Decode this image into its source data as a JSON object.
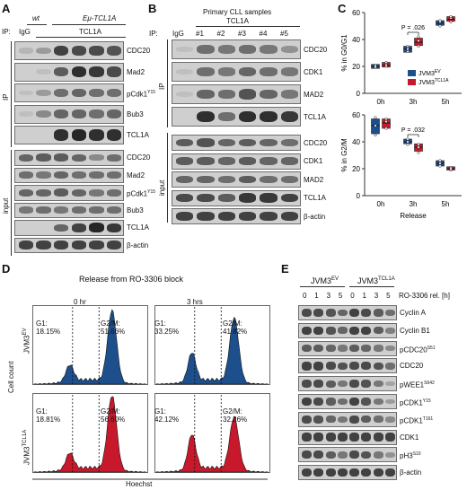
{
  "panels": {
    "a": "A",
    "b": "B",
    "c": "C",
    "d": "D",
    "e": "E"
  },
  "panelA": {
    "wt": "wt",
    "tg": "Eμ-TCL1A",
    "ip": "IP:",
    "igg": "IgG",
    "tcl1a": "TCL1A",
    "section_ip": "IP",
    "section_input": "input",
    "ip_rows": [
      {
        "label": "CDC20",
        "lanes": [
          0.1,
          0.25,
          0.75,
          0.7,
          0.7,
          0.65
        ]
      },
      {
        "label": "Mad2",
        "lanes": [
          0,
          0.05,
          0.6,
          0.85,
          0.8,
          0.7
        ]
      },
      {
        "label": "pCdk1Y15",
        "lanes": [
          0.05,
          0.25,
          0.5,
          0.55,
          0.5,
          0.5
        ]
      },
      {
        "label": "Bub3",
        "lanes": [
          0.05,
          0.35,
          0.55,
          0.55,
          0.5,
          0.55
        ]
      },
      {
        "label": "TCL1A",
        "lanes": [
          0,
          0,
          0.85,
          0.9,
          0.85,
          0.85
        ]
      }
    ],
    "input_rows": [
      {
        "label": "CDC20",
        "lanes": [
          0.55,
          0.6,
          0.6,
          0.55,
          0.35,
          0.5
        ]
      },
      {
        "label": "Mad2",
        "lanes": [
          0.5,
          0.45,
          0.55,
          0.5,
          0.5,
          0.5
        ]
      },
      {
        "label": "pCdk1Y15",
        "lanes": [
          0.55,
          0.55,
          0.6,
          0.55,
          0.45,
          0.5
        ]
      },
      {
        "label": "Bub3",
        "lanes": [
          0.45,
          0.5,
          0.45,
          0.5,
          0.5,
          0.5
        ]
      },
      {
        "label": "TCL1A",
        "lanes": [
          0,
          0,
          0.55,
          0.75,
          0.9,
          0.8
        ]
      },
      {
        "label": "β-actin",
        "lanes": [
          0.75,
          0.75,
          0.75,
          0.75,
          0.75,
          0.75
        ]
      }
    ]
  },
  "panelB": {
    "ip": "IP:",
    "igg": "IgG",
    "title1": "Primary CLL samples",
    "title2": "TCL1A",
    "samples": [
      "#1",
      "#2",
      "#3",
      "#4",
      "#5"
    ],
    "section_ip": "IP",
    "section_input": "input",
    "ip_rows": [
      {
        "label": "CDC20",
        "lanes": [
          0.05,
          0.5,
          0.45,
          0.5,
          0.45,
          0.3
        ]
      },
      {
        "label": "CDK1",
        "lanes": [
          0.05,
          0.5,
          0.45,
          0.55,
          0.5,
          0.45
        ]
      },
      {
        "label": "MAD2",
        "lanes": [
          0.05,
          0.55,
          0.5,
          0.65,
          0.55,
          0.45
        ]
      },
      {
        "label": "TCL1A",
        "lanes": [
          0,
          0.85,
          0.5,
          0.85,
          0.85,
          0.8
        ]
      }
    ],
    "input_rows": [
      {
        "label": "CDC20",
        "lanes": [
          0.6,
          0.65,
          0.55,
          0.6,
          0.55,
          0.5
        ]
      },
      {
        "label": "CDK1",
        "lanes": [
          0.6,
          0.6,
          0.55,
          0.6,
          0.55,
          0.55
        ]
      },
      {
        "label": "MAD2",
        "lanes": [
          0.55,
          0.55,
          0.5,
          0.6,
          0.5,
          0.5
        ]
      },
      {
        "label": "TCL1A",
        "lanes": [
          0.7,
          0.7,
          0.6,
          0.8,
          0.8,
          0.75
        ]
      },
      {
        "label": "β-actin",
        "lanes": [
          0.75,
          0.75,
          0.75,
          0.75,
          0.75,
          0.75
        ]
      }
    ]
  },
  "panelD": {
    "title": "Release from RO-3306 block",
    "time0": "0 hr",
    "time3": "3 hrs",
    "ylabel": "Cell count",
    "xlabel": "Hoechst",
    "row_ev": "JVM3EV",
    "row_tcl": "JVM3TCL1A",
    "ev_0_g1": "G1:\n18.15%",
    "ev_0_g2": "G2/M:\n51.66%",
    "ev_3_g1": "G1:\n33.25%",
    "ev_3_g2": "G2/M:\n41.82%",
    "tcl_0_g1": "G1:\n18.81%",
    "tcl_0_g2": "G2/M:\n56.60%",
    "tcl_3_g1": "G1:\n42.12%",
    "tcl_3_g2": "G2/M:\n32.26%",
    "color_ev": "#1d4f8c",
    "color_tcl": "#c8192c"
  },
  "panelE": {
    "group_ev": "JVM3EV",
    "group_tcl": "JVM3TCL1A",
    "times": [
      "0",
      "1",
      "3",
      "5",
      "0",
      "1",
      "3",
      "5"
    ],
    "release_label": "RO-3306 rel. [h]",
    "rows": [
      {
        "label": "Cyclin A",
        "lanes": [
          0.7,
          0.7,
          0.65,
          0.55,
          0.75,
          0.7,
          0.6,
          0.5
        ]
      },
      {
        "label": "Cyclin B1",
        "lanes": [
          0.75,
          0.75,
          0.65,
          0.55,
          0.75,
          0.75,
          0.6,
          0.4
        ]
      },
      {
        "label": "pCDC20S51",
        "lanes": [
          0.6,
          0.6,
          0.55,
          0.45,
          0.6,
          0.55,
          0.45,
          0.35
        ]
      },
      {
        "label": "CDC20",
        "lanes": [
          0.75,
          0.75,
          0.7,
          0.65,
          0.7,
          0.7,
          0.65,
          0.5
        ]
      },
      {
        "label": "pWEE1S642",
        "lanes": [
          0.7,
          0.7,
          0.6,
          0.45,
          0.7,
          0.65,
          0.45,
          0.2
        ]
      },
      {
        "label": "pCDK1Y15",
        "lanes": [
          0.75,
          0.7,
          0.6,
          0.5,
          0.75,
          0.65,
          0.45,
          0.25
        ]
      },
      {
        "label": "pCDK1T161",
        "lanes": [
          0.7,
          0.65,
          0.55,
          0.45,
          0.7,
          0.6,
          0.5,
          0.35
        ]
      },
      {
        "label": "CDK1",
        "lanes": [
          0.75,
          0.75,
          0.75,
          0.75,
          0.75,
          0.75,
          0.75,
          0.75
        ]
      },
      {
        "label": "pH3S10",
        "lanes": [
          0.7,
          0.7,
          0.6,
          0.45,
          0.7,
          0.65,
          0.45,
          0.3
        ]
      },
      {
        "label": "β-actin",
        "lanes": [
          0.75,
          0.75,
          0.75,
          0.75,
          0.75,
          0.75,
          0.75,
          0.75
        ]
      }
    ]
  },
  "chart_data": [
    {
      "type": "scatter",
      "title": "",
      "xlabel": "",
      "ylabel": "% in G0/G1",
      "categories": [
        "0h",
        "3h",
        "5h"
      ],
      "ylim": [
        0,
        60
      ],
      "yticks": [
        0,
        20,
        40,
        60
      ],
      "annotation": "P = .026",
      "legend_position": "bottom-right",
      "series": [
        {
          "name": "JVM3EV",
          "color": "#1d4f8c",
          "median": [
            20,
            33,
            52
          ],
          "q1": [
            18.5,
            30.5,
            50.5
          ],
          "q3": [
            21.5,
            35,
            54
          ],
          "points": [
            [
              19,
              21,
              20
            ],
            [
              31,
              35,
              33
            ],
            [
              50,
              53,
              54
            ]
          ]
        },
        {
          "name": "JVM3TCL1A",
          "color": "#c8192c",
          "median": [
            21,
            38,
            55
          ],
          "q1": [
            19.5,
            35.5,
            53.5
          ],
          "q3": [
            23,
            41,
            57
          ],
          "points": [
            [
              20,
              23,
              21
            ],
            [
              35,
              42,
              39
            ],
            [
              53,
              56,
              57
            ]
          ]
        }
      ]
    },
    {
      "type": "scatter",
      "title": "",
      "xlabel": "Release",
      "ylabel": "% in G2/M",
      "categories": [
        "0h",
        "3h",
        "5h"
      ],
      "ylim": [
        0,
        60
      ],
      "yticks": [
        0,
        20,
        40,
        60
      ],
      "annotation": "P = .032",
      "series": [
        {
          "name": "JVM3EV",
          "color": "#1d4f8c",
          "median": [
            52,
            40,
            24
          ],
          "q1": [
            46,
            38.5,
            22
          ],
          "q3": [
            57,
            42,
            26
          ],
          "points": [
            [
              45,
              58,
              52
            ],
            [
              38,
              42,
              40
            ],
            [
              22,
              26,
              24
            ]
          ]
        },
        {
          "name": "JVM3TCL1A",
          "color": "#c8192c",
          "median": [
            54,
            36,
            20
          ],
          "q1": [
            50,
            33,
            19
          ],
          "q3": [
            57,
            38.5,
            21.5
          ],
          "points": [
            [
              50,
              57,
              55
            ],
            [
              32,
              38,
              36
            ],
            [
              19,
              21,
              20
            ]
          ]
        }
      ]
    }
  ]
}
